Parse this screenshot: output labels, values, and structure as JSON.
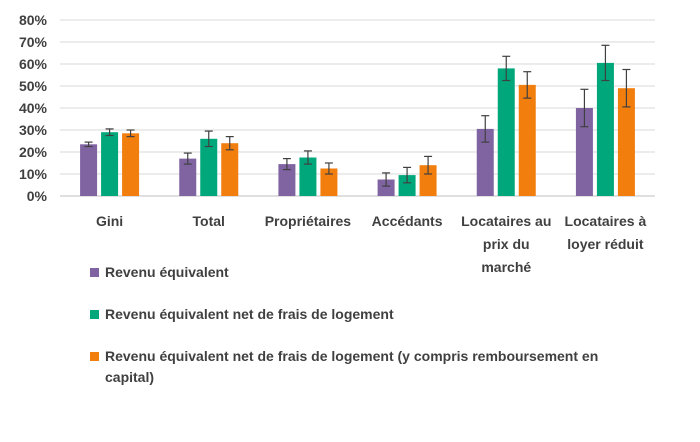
{
  "chart_data": {
    "type": "bar",
    "title": "",
    "xlabel": "",
    "ylabel": "",
    "ylim": [
      0,
      80
    ],
    "yticks": [
      "0%",
      "10%",
      "20%",
      "30%",
      "40%",
      "50%",
      "60%",
      "70%",
      "80%"
    ],
    "ytick_values": [
      0,
      10,
      20,
      30,
      40,
      50,
      60,
      70,
      80
    ],
    "grid": true,
    "legend_position": "bottom-left",
    "categories": [
      [
        "Gini"
      ],
      [
        "Total"
      ],
      [
        "Propriétaires"
      ],
      [
        "Accédants"
      ],
      [
        "Locataires au",
        "prix du",
        "marché"
      ],
      [
        "Locataires à",
        "loyer réduit"
      ]
    ],
    "series": [
      {
        "name": "Revenu équivalent",
        "color": "#8064A2",
        "values": [
          23.5,
          17,
          14.5,
          7.5,
          30.5,
          40
        ],
        "errors": [
          1,
          2.5,
          2.5,
          3,
          6,
          8.5
        ]
      },
      {
        "name": "Revenu équivalent net de frais de logement",
        "color": "#00A77A",
        "values": [
          29,
          26,
          17.5,
          9.5,
          58,
          60.5
        ],
        "errors": [
          1.5,
          3.5,
          3,
          3.5,
          5.5,
          8
        ]
      },
      {
        "name": "Revenu équivalent net de frais de logement (y compris remboursement en capital)",
        "color": "#F27E0E",
        "values": [
          28.5,
          24,
          12.5,
          14,
          50.5,
          49
        ],
        "errors": [
          1.5,
          3,
          2.5,
          4,
          6,
          8.5
        ]
      }
    ]
  }
}
